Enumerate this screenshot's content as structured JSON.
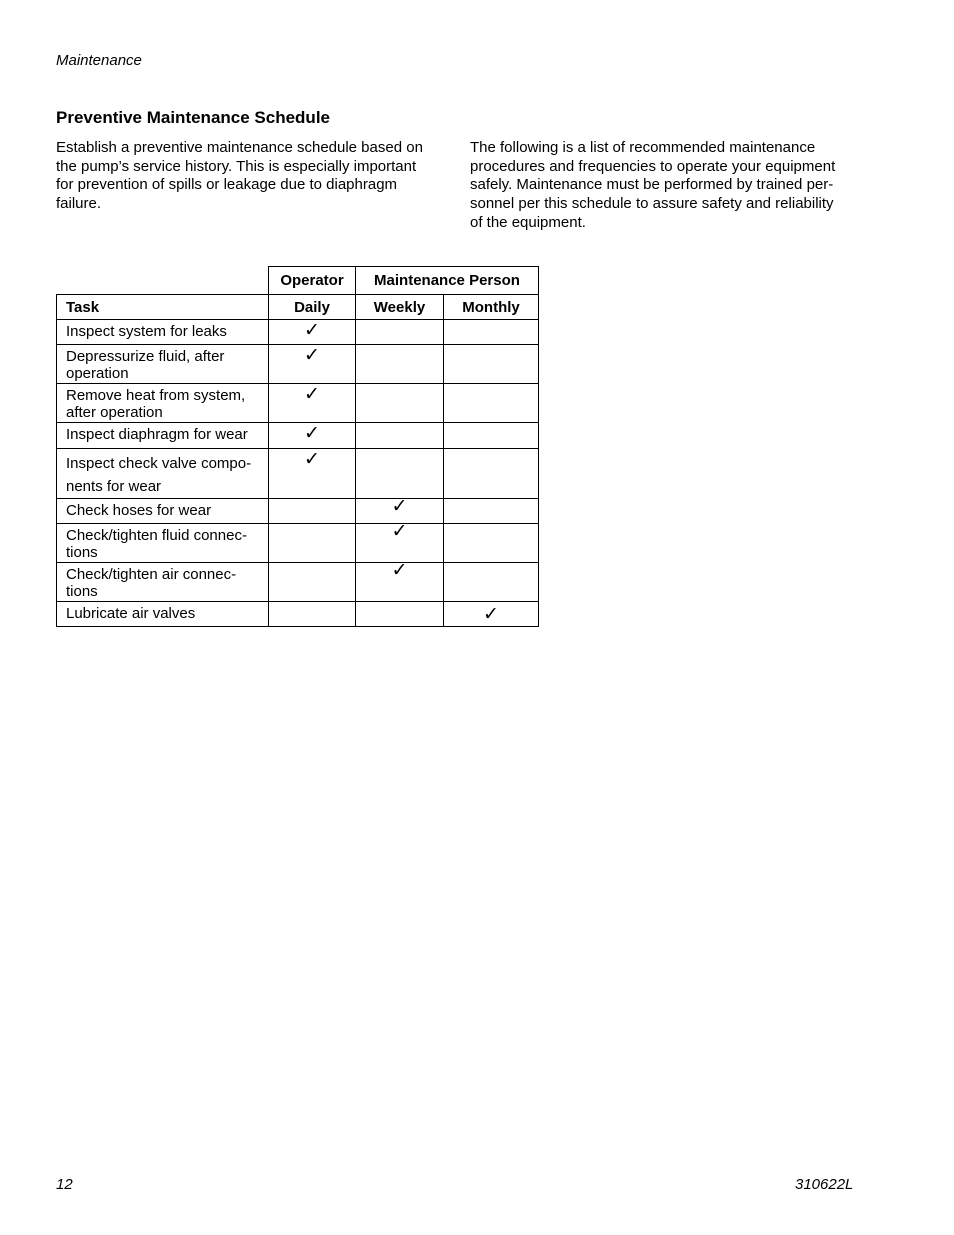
{
  "header": {
    "section": "Maintenance"
  },
  "title": "Preventive Maintenance Schedule",
  "paragraphs": [
    "Establish a preventive maintenance schedule based on\nthe pump’s service history. This is especially important\nfor prevention of spills or leakage due to diaphragm\nfailure.",
    "The following is a list of recommended maintenance\nprocedures and frequencies to operate your equipment\nsafely. Maintenance must be performed by trained per-\nsonnel per this schedule to assure safety and reliability\nof the equipment."
  ],
  "table": {
    "group_headers": {
      "operator": "Operator",
      "maintenance": "Maintenance Person"
    },
    "columns": [
      "Task",
      "Daily",
      "Weekly",
      "Monthly"
    ],
    "check_glyph": "✓",
    "rows": [
      {
        "task": "Inspect system for leaks",
        "freq": "Daily"
      },
      {
        "task": "Depressurize fluid, after\noperation",
        "freq": "Daily"
      },
      {
        "task": "Remove heat from system,\nafter operation",
        "freq": "Daily"
      },
      {
        "task": "Inspect diaphragm for wear",
        "freq": "Daily"
      },
      {
        "task": "Inspect check valve compo-\nnents for wear",
        "freq": "Daily"
      },
      {
        "task": "Check hoses for wear",
        "freq": "Weekly"
      },
      {
        "task": "Check/tighten fluid connec-\ntions",
        "freq": "Weekly"
      },
      {
        "task": "Check/tighten air connec-\ntions",
        "freq": "Weekly"
      },
      {
        "task": "Lubricate air valves",
        "freq": "Monthly"
      }
    ]
  },
  "footer": {
    "page_number": "12",
    "doc_number": "310622L"
  }
}
